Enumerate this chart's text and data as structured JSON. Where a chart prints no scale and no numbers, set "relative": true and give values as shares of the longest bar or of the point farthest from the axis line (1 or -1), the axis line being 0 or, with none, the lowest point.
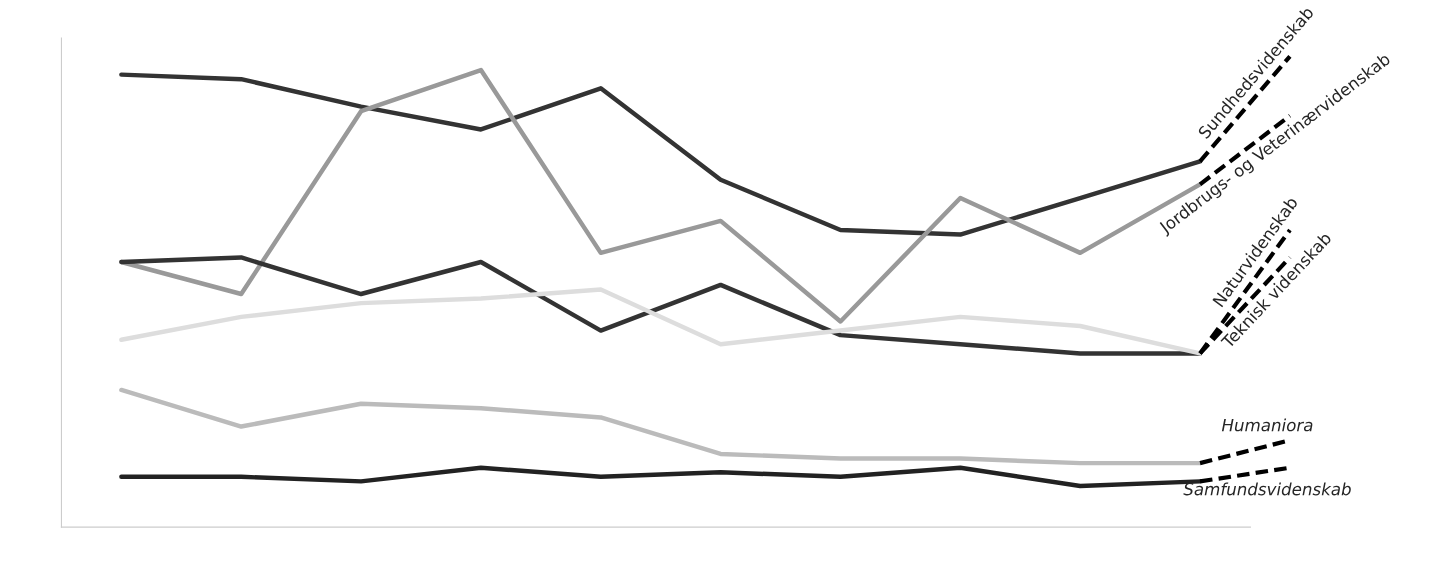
{
  "chart_data": {
    "type": "line",
    "relative": true,
    "categories": [
      null,
      null,
      null,
      null,
      null,
      null,
      null,
      null,
      null,
      null
    ],
    "series": [
      {
        "name": "Sundhedsvidenskab",
        "color": "#333333",
        "values": [
          0.99,
          0.98,
          0.92,
          0.87,
          0.96,
          0.76,
          0.65,
          0.64,
          0.72,
          0.8
        ]
      },
      {
        "name": "Jordbrugs- og Veterinærvidenskab",
        "color": "#999999",
        "values": [
          0.58,
          0.51,
          0.91,
          1.0,
          0.6,
          0.67,
          0.45,
          0.72,
          0.6,
          0.75
        ]
      },
      {
        "name": "Naturvidenskab",
        "color": "#333333",
        "values": [
          0.58,
          0.59,
          0.51,
          0.58,
          0.43,
          0.53,
          0.42,
          0.4,
          0.38,
          0.38
        ]
      },
      {
        "name": "Teknisk videnskab",
        "color": "#dddddd",
        "values": [
          0.41,
          0.46,
          0.49,
          0.5,
          0.52,
          0.4,
          0.43,
          0.46,
          0.44,
          0.38
        ]
      },
      {
        "name": "Humaniora",
        "color": "#bbbbbb",
        "values": [
          0.3,
          0.22,
          0.27,
          0.26,
          0.24,
          0.16,
          0.15,
          0.15,
          0.14,
          0.14
        ]
      },
      {
        "name": "Samfundsvidenskab",
        "color": "#222222",
        "values": [
          0.11,
          0.11,
          0.1,
          0.13,
          0.11,
          0.12,
          0.11,
          0.13,
          0.09,
          0.1
        ]
      }
    ]
  }
}
